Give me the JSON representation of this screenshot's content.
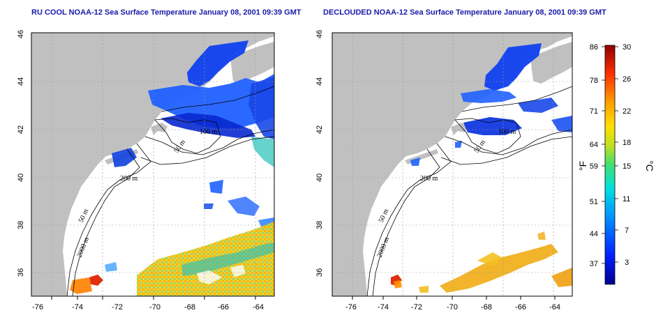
{
  "panels": [
    {
      "id": "raw",
      "title": "RU COOL NOAA-12 Sea Surface Temperature January 08, 2001 09:39 GMT",
      "isobath_labels": [
        "100 m",
        "50 m",
        "200 m",
        "50 m",
        "2000 m"
      ]
    },
    {
      "id": "declouded",
      "title": "DECLOUDED NOAA-12 Sea Surface Temperature January 08, 2001 09:39 GMT",
      "isobath_labels": [
        "100 m",
        "50 m",
        "200 m",
        "50 m",
        "2000 m"
      ]
    }
  ],
  "map": {
    "lon_ticks": [
      "-76",
      "-74",
      "-72",
      "-70",
      "-68",
      "-66",
      "-64"
    ],
    "lat_ticks": [
      "36",
      "38",
      "40",
      "42",
      "44",
      "46"
    ],
    "lon_range": [
      -77.2,
      -63.0
    ],
    "lat_range": [
      35.0,
      46.0
    ],
    "colors": {
      "land": "#c0c0c0",
      "ocean": "#ffffff",
      "grid": "#9a9a9a",
      "axis": "#000000"
    }
  },
  "colorbar": {
    "fahrenheit": [
      "86",
      "78",
      "71",
      "64",
      "59",
      "51",
      "44",
      "37"
    ],
    "celsius": [
      "30",
      "26",
      "22",
      "18",
      "15",
      "11",
      "7",
      "3"
    ],
    "unit_f": "°F",
    "unit_c": "°C",
    "range_c": [
      0,
      30
    ]
  }
}
